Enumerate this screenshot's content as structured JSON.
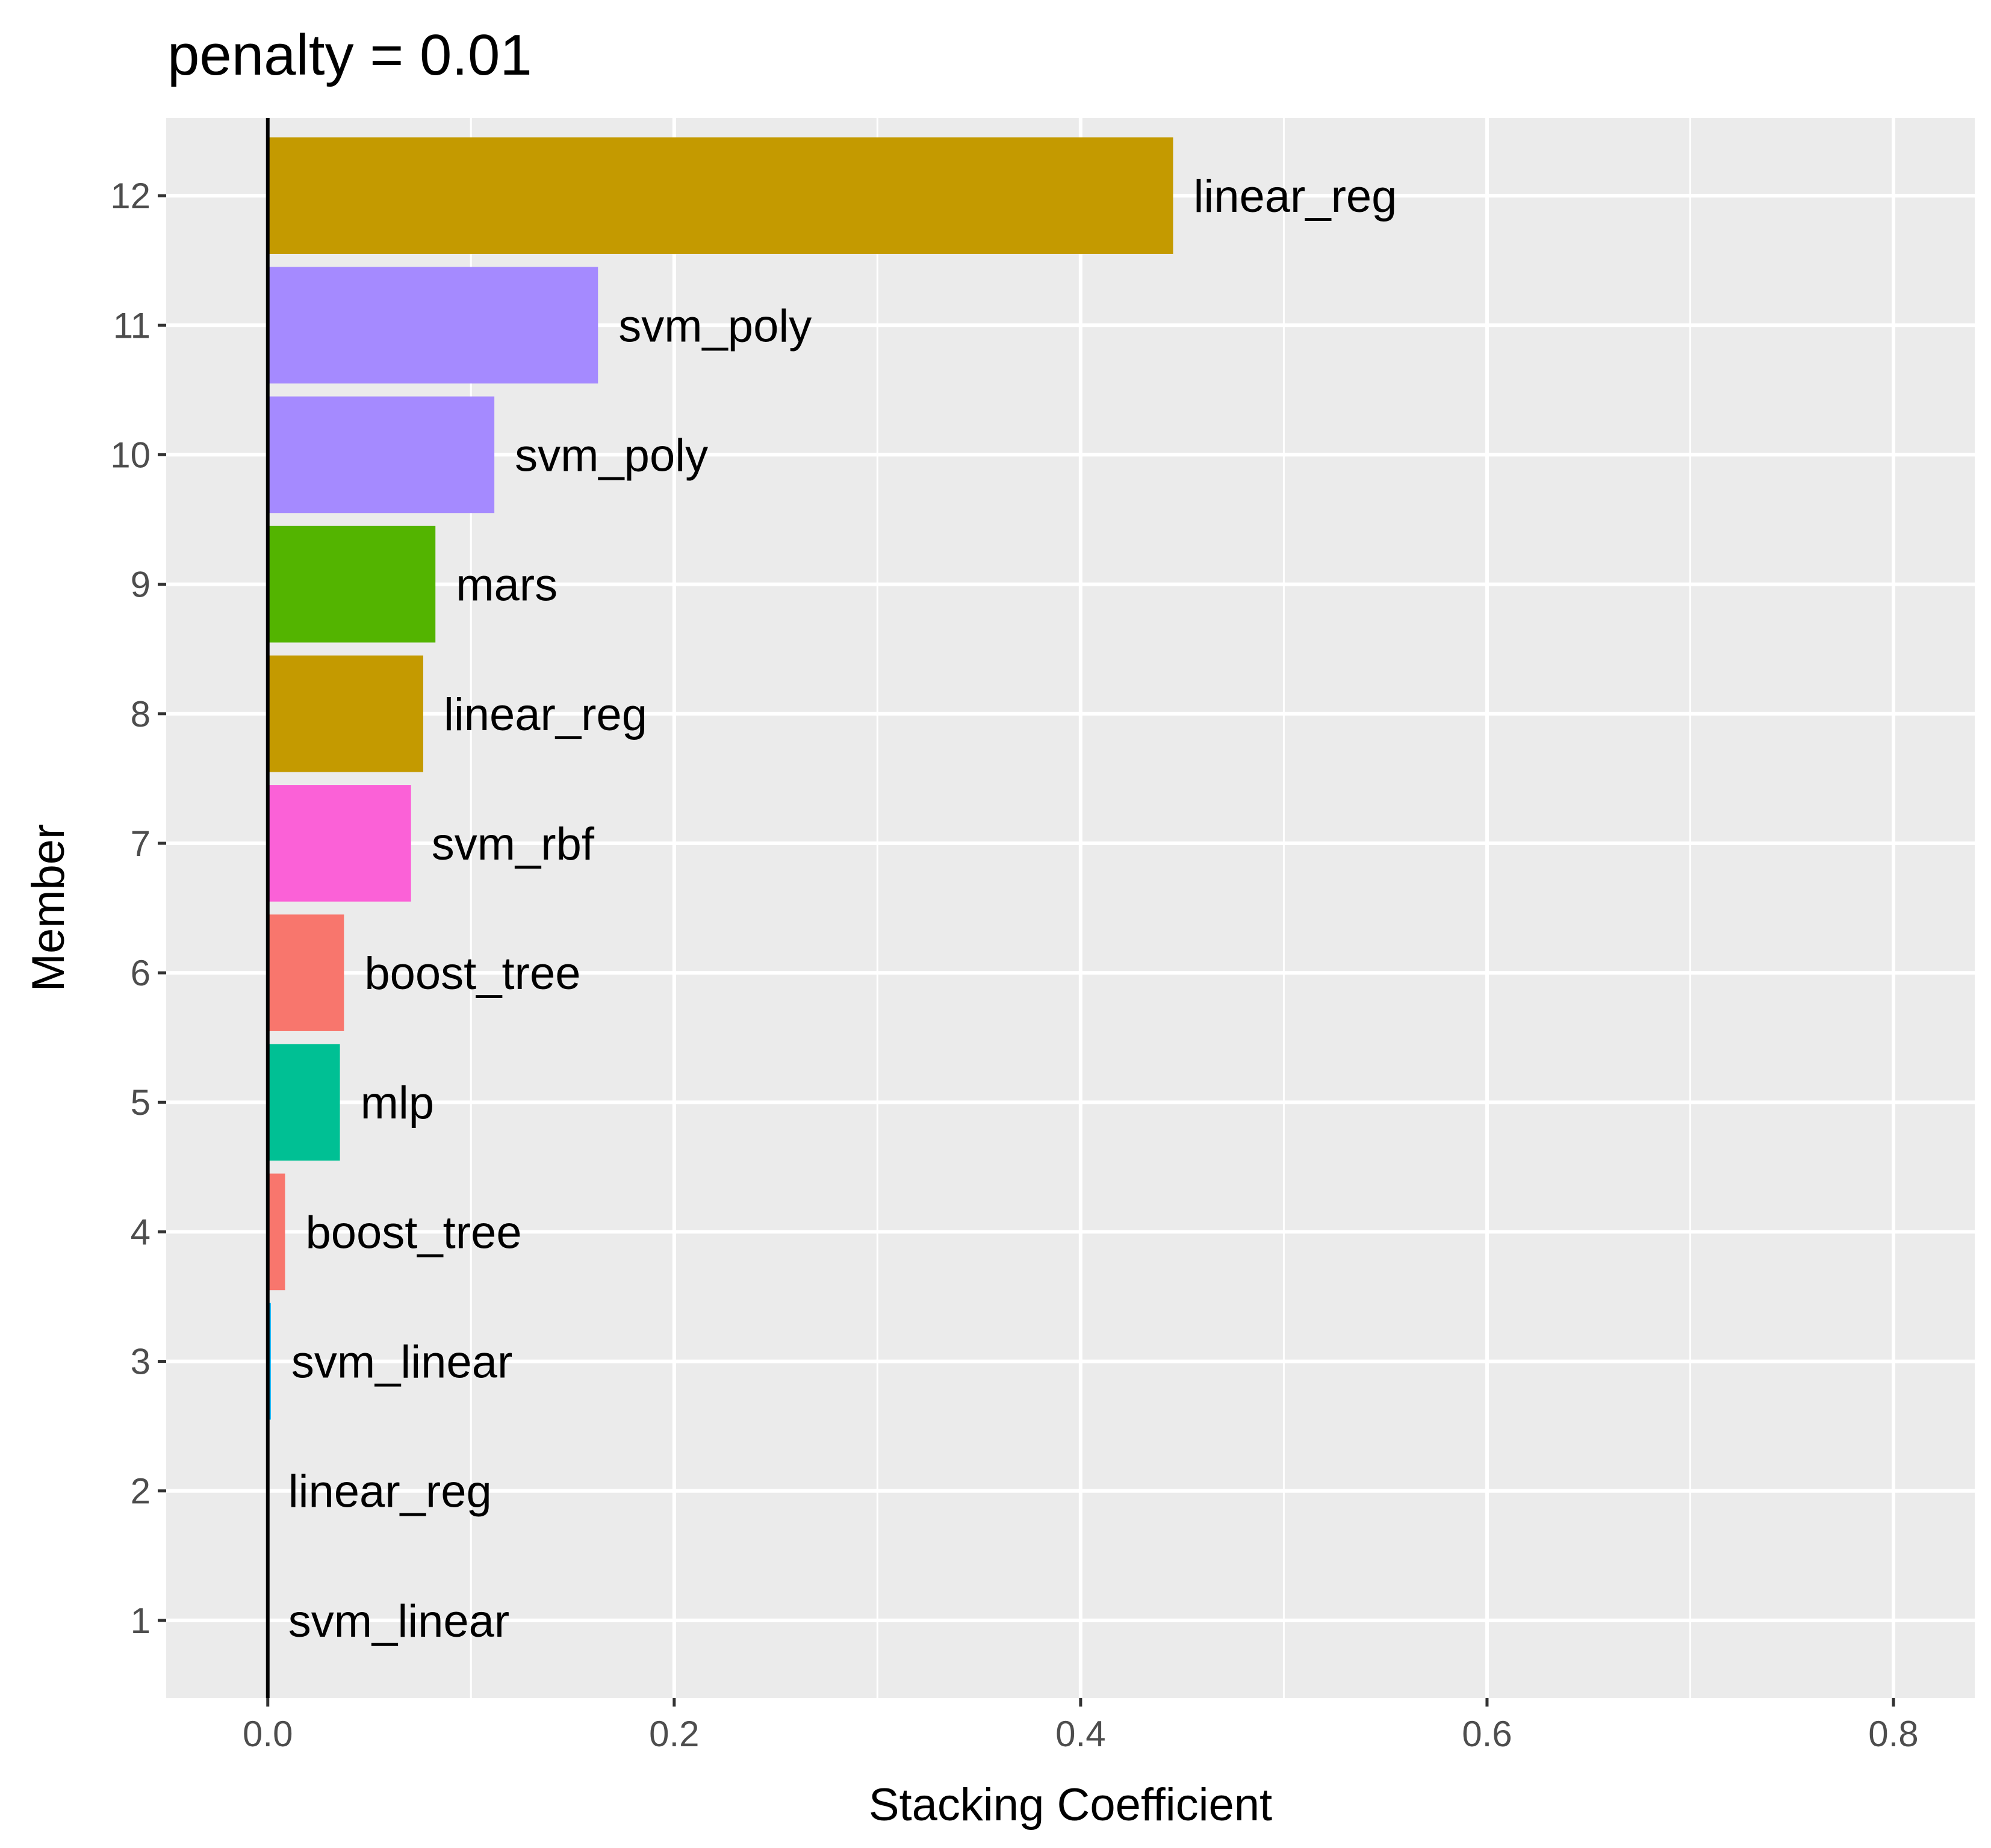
{
  "chart_data": {
    "type": "bar",
    "orientation": "horizontal",
    "title": "penalty = 0.01",
    "xlabel": "Stacking Coefficient",
    "ylabel": "Member",
    "xlim": [
      -0.05,
      0.84
    ],
    "xticks": [
      0.0,
      0.2,
      0.4,
      0.6,
      0.8
    ],
    "xtick_labels": [
      "0.0",
      "0.2",
      "0.4",
      "0.6",
      "0.8"
    ],
    "grid": true,
    "categories": [
      "1",
      "2",
      "3",
      "4",
      "5",
      "6",
      "7",
      "8",
      "9",
      "10",
      "11",
      "12"
    ],
    "values": [
      0.0,
      0.0,
      0.0015,
      0.0085,
      0.0355,
      0.0375,
      0.0705,
      0.0765,
      0.0825,
      0.1115,
      0.1625,
      0.4455
    ],
    "labels": [
      "svm_linear",
      "linear_reg",
      "svm_linear",
      "boost_tree",
      "mlp",
      "boost_tree",
      "svm_rbf",
      "linear_reg",
      "mars",
      "svm_poly",
      "svm_poly",
      "linear_reg"
    ],
    "colors": {
      "svm_linear": "#00b0f6",
      "linear_reg": "#c49a00",
      "boost_tree": "#f8766d",
      "mlp": "#00c094",
      "svm_rbf": "#fb61d7",
      "mars": "#53b400",
      "svm_poly": "#a58aff"
    },
    "panel_background": "#ebebeb",
    "grid_color": "#ffffff",
    "zero_line_color": "#000000"
  }
}
